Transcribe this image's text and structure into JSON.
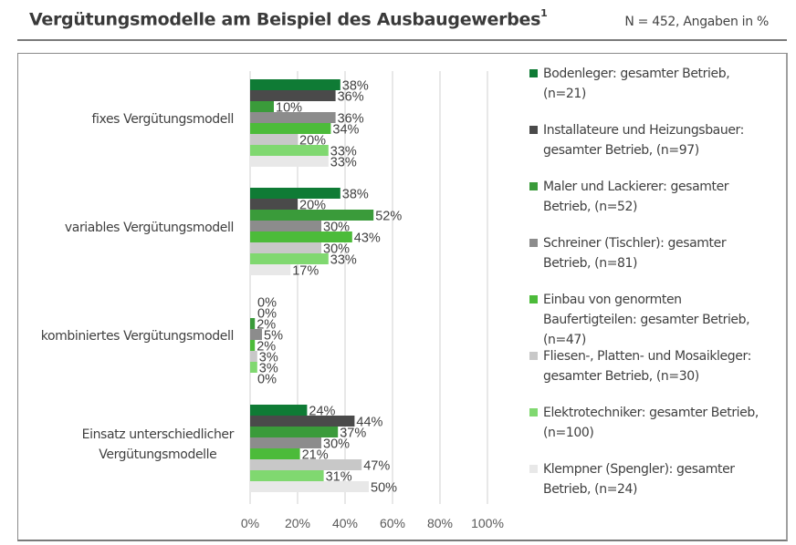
{
  "header": {
    "title": "Vergütungsmodelle am Beispiel des Ausbaugewerbes",
    "title_footnote": "1",
    "sample_info": "N = 452, Angaben in %"
  },
  "chart_data": {
    "type": "bar",
    "orientation": "horizontal",
    "title": "Vergütungsmodelle am Beispiel des Ausbaugewerbes",
    "subtitle": "N = 452, Angaben in %",
    "categories": [
      "fixes Vergütungsmodell",
      "variables Vergütungsmodell",
      "kombiniertes Vergütungsmodell",
      "Einsatz unterschiedlicher Vergütungsmodelle"
    ],
    "category_lines": [
      [
        "fixes Vergütungsmodell"
      ],
      [
        "variables Vergütungsmodell"
      ],
      [
        "kombiniertes Vergütungsmodell"
      ],
      [
        "Einsatz unterschiedlicher",
        "Vergütungsmodelle"
      ]
    ],
    "series": [
      {
        "name": "Bodenleger: gesamter Betrieb, (n=21)",
        "legend_lines": [
          "Bodenleger: gesamter Betrieb,",
          "(n=21)"
        ],
        "color": "#0F7B35",
        "values": [
          38,
          38,
          0,
          24
        ]
      },
      {
        "name": "Installateure und Heizungsbauer: gesamter Betrieb, (n=97)",
        "legend_lines": [
          "Installateure und Heizungsbauer:",
          "gesamter Betrieb, (n=97)"
        ],
        "color": "#4A4A4A",
        "values": [
          36,
          20,
          0,
          44
        ]
      },
      {
        "name": "Maler und Lackierer: gesamter Betrieb, (n=52)",
        "legend_lines": [
          "Maler und Lackierer: gesamter",
          "Betrieb, (n=52)"
        ],
        "color": "#3A9B3A",
        "values": [
          10,
          52,
          2,
          37
        ]
      },
      {
        "name": "Schreiner (Tischler): gesamter Betrieb, (n=81)",
        "legend_lines": [
          "Schreiner (Tischler): gesamter",
          "Betrieb, (n=81)"
        ],
        "color": "#8C8C8C",
        "values": [
          36,
          30,
          5,
          30
        ]
      },
      {
        "name": "Einbau von genormten Baufertigteilen: gesamter Betrieb, (n=47)",
        "legend_lines": [
          "Einbau von genormten",
          "Baufertigteilen: gesamter Betrieb,",
          "(n=47)"
        ],
        "color": "#4CBB3A",
        "values": [
          34,
          43,
          2,
          21
        ]
      },
      {
        "name": "Fliesen-, Platten- und Mosaikleger: gesamter Betrieb, (n=30)",
        "legend_lines": [
          "Fliesen-, Platten- und Mosaikleger:",
          "gesamter Betrieb, (n=30)"
        ],
        "color": "#C8C8C8",
        "values": [
          20,
          30,
          3,
          47
        ]
      },
      {
        "name": "Elektrotechniker: gesamter Betrieb, (n=100)",
        "legend_lines": [
          "Elektrotechniker: gesamter Betrieb,",
          "(n=100)"
        ],
        "color": "#80D870",
        "values": [
          33,
          33,
          3,
          31
        ]
      },
      {
        "name": "Klempner (Spengler): gesamter Betrieb, (n=24)",
        "legend_lines": [
          "Klempner (Spengler): gesamter",
          "Betrieb, (n=24)"
        ],
        "color": "#E8E8E8",
        "values": [
          33,
          17,
          0,
          50
        ]
      }
    ],
    "value_suffix": "%",
    "xlabel": "",
    "ylabel": "",
    "xlim": [
      0,
      100
    ],
    "x_ticks": [
      0,
      20,
      40,
      60,
      80,
      100
    ],
    "x_tick_labels": [
      "0%",
      "20%",
      "40%",
      "60%",
      "80%",
      "100%"
    ],
    "grid": "vertical",
    "legend_position": "right"
  }
}
